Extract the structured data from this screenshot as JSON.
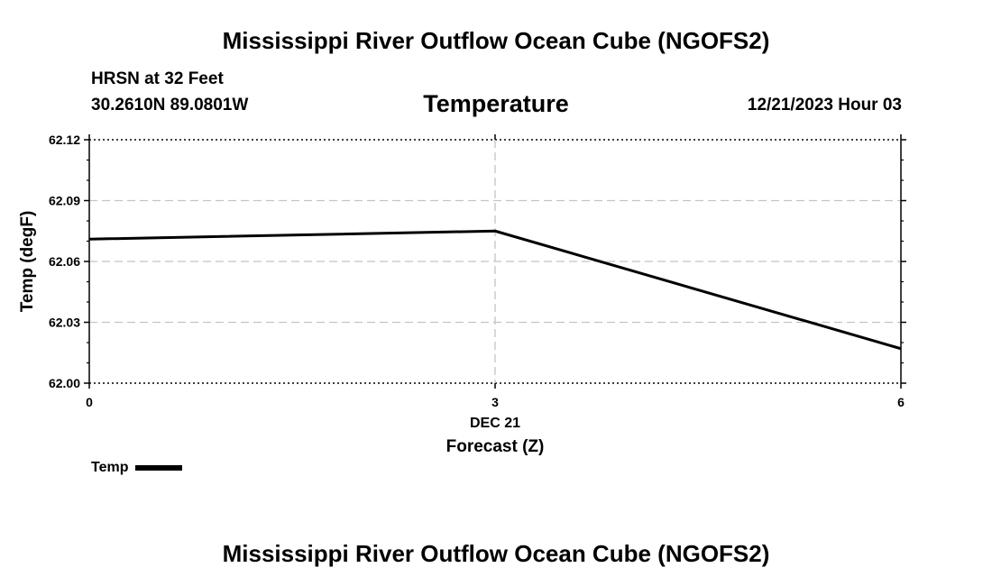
{
  "page": {
    "title_top": "Mississippi River Outflow Ocean Cube (NGOFS2)",
    "title_bottom": "Mississippi River Outflow Ocean Cube (NGOFS2)",
    "station": "HRSN at 32 Feet",
    "coords": "30.2610N  89.0801W",
    "subtitle": "Temperature",
    "datetime": "12/21/2023 Hour 03"
  },
  "legend": {
    "label": "Temp"
  },
  "chart_data": {
    "type": "line",
    "title": "Temperature",
    "xlabel": "Forecast (Z)",
    "ylabel": "Temp (degF)",
    "x": [
      0,
      3,
      6
    ],
    "x_ticks": [
      "0",
      "3",
      "6"
    ],
    "x_date_label": "DEC 21",
    "xlim": [
      0,
      6
    ],
    "ylim": [
      62.0,
      62.12
    ],
    "y_ticks": [
      "62.00",
      "62.03",
      "62.06",
      "62.09",
      "62.12"
    ],
    "series": [
      {
        "name": "Temp",
        "values": [
          62.071,
          62.075,
          62.017
        ],
        "color": "#000000"
      }
    ],
    "grid": true,
    "legend_position": "bottom-left"
  }
}
